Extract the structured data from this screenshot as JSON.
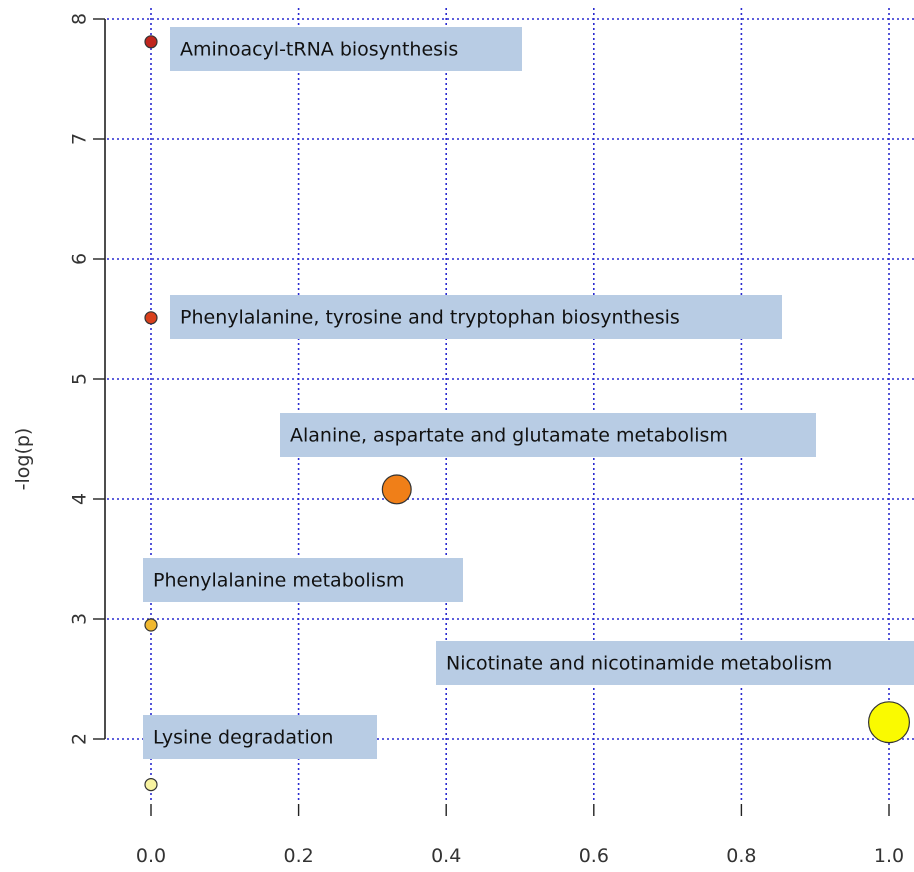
{
  "chart_data": {
    "type": "scatter",
    "ylabel": "-log(p)",
    "xlabel": "",
    "xlim": [
      0.0,
      1.0
    ],
    "ylim": [
      1.5,
      8.0
    ],
    "x_ticks": [
      0.0,
      0.2,
      0.4,
      0.6,
      0.8,
      1.0
    ],
    "x_tick_labels": [
      "0.0",
      "0.2",
      "0.4",
      "0.6",
      "0.8",
      "1.0"
    ],
    "y_ticks": [
      2,
      3,
      4,
      5,
      6,
      7,
      8
    ],
    "y_tick_labels": [
      "2",
      "3",
      "4",
      "5",
      "6",
      "7",
      "8"
    ],
    "grid": true,
    "points": [
      {
        "label": "Aminoacyl-tRNA biosynthesis",
        "x": 0.0,
        "y": 7.81,
        "size": 1,
        "color": "#c0261e"
      },
      {
        "label": "Phenylalanine, tyrosine and tryptophan biosynthesis",
        "x": 0.0,
        "y": 5.51,
        "size": 1,
        "color": "#d9401c"
      },
      {
        "label": "Alanine, aspartate and glutamate metabolism",
        "x": 0.333,
        "y": 4.08,
        "size": 3,
        "color": "#f07f18"
      },
      {
        "label": "Phenylalanine metabolism",
        "x": 0.0,
        "y": 2.95,
        "size": 1,
        "color": "#f0b830"
      },
      {
        "label": "Nicotinate and nicotinamide metabolism",
        "x": 1.0,
        "y": 2.14,
        "size": 4,
        "color": "#fafa00"
      },
      {
        "label": "Lysine degradation",
        "x": 0.0,
        "y": 1.62,
        "size": 1,
        "color": "#f8f3a0"
      }
    ]
  }
}
